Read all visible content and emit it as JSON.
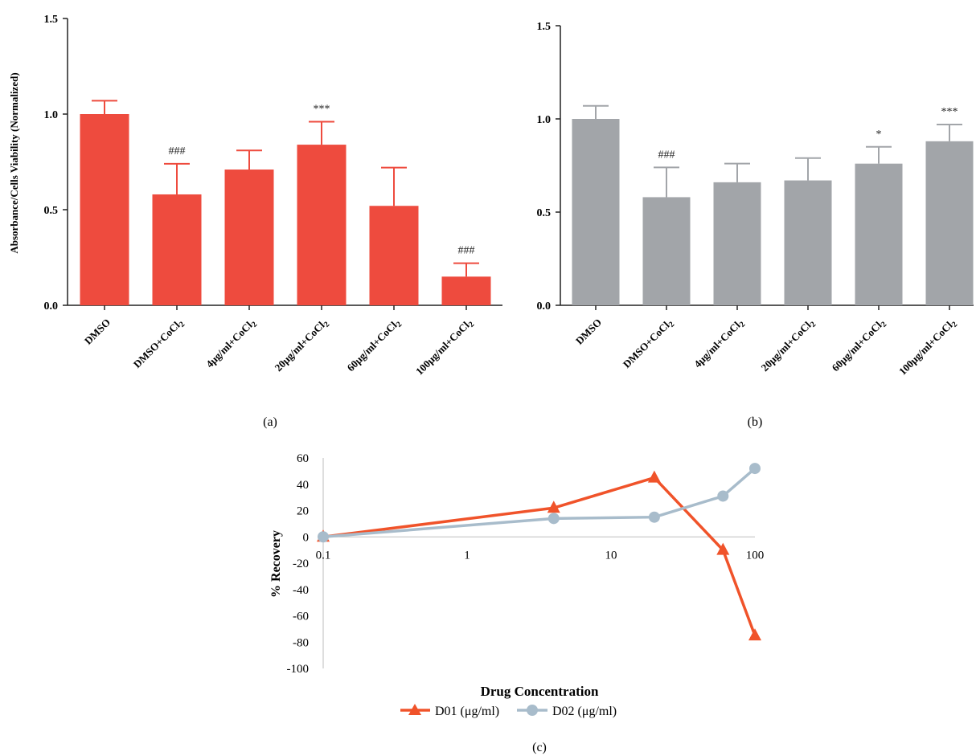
{
  "chart_data": [
    {
      "panel": "(a)",
      "type": "bar",
      "ylabel": "Absorbance/Cells Viability (Normalized)",
      "categories": [
        "DMSO",
        "DMSO+CoCl₂",
        "4μg/ml+CoCl₂",
        "20μg/ml+CoCl₂",
        "60μg/ml+CoCl₂",
        "100μg/ml+CoCl₂"
      ],
      "values": [
        1.0,
        0.58,
        0.71,
        0.84,
        0.52,
        0.15
      ],
      "errors": [
        0.07,
        0.16,
        0.1,
        0.12,
        0.2,
        0.07
      ],
      "annotations": [
        "",
        "###",
        "",
        "***",
        "",
        "###"
      ],
      "ylim": [
        0,
        1.5
      ],
      "yticks": [
        "0.0",
        "0.5",
        "1.0",
        "1.5"
      ],
      "color": "#ee4b3e"
    },
    {
      "panel": "(b)",
      "type": "bar",
      "ylabel": "",
      "categories": [
        "DMSO",
        "DMSO+CoCl₂",
        "4μg/ml+CoCl₂",
        "20μg/ml+CoCl₂",
        "60μg/ml+CoCl₂",
        "100μg/ml+CoCl₂"
      ],
      "values": [
        1.0,
        0.58,
        0.66,
        0.67,
        0.76,
        0.88
      ],
      "errors": [
        0.07,
        0.16,
        0.1,
        0.12,
        0.09,
        0.09
      ],
      "annotations": [
        "",
        "###",
        "",
        "",
        "*",
        "***"
      ],
      "ylim": [
        0,
        1.5
      ],
      "yticks": [
        "0.0",
        "0.5",
        "1.0",
        "1.5"
      ],
      "color": "#a2a5a9"
    },
    {
      "panel": "(c)",
      "type": "line",
      "xscale": "log",
      "xlabel": "Drug Concentration",
      "ylabel": "% Recovery",
      "xticks": [
        "0.1",
        "1",
        "10",
        "100"
      ],
      "yticks": [
        "60",
        "40",
        "20",
        "0",
        "-20",
        "-40",
        "-60",
        "-80",
        "-100"
      ],
      "ylim": [
        -100,
        60
      ],
      "series": [
        {
          "name": "D01 (μg/ml)",
          "marker": "triangle",
          "color": "#f0532a",
          "x": [
            0.1,
            4,
            20,
            60,
            100
          ],
          "values": [
            0,
            22,
            45,
            -10,
            -75
          ]
        },
        {
          "name": "D02 (μg/ml)",
          "marker": "circle",
          "color": "#a8bccb",
          "x": [
            0.1,
            4,
            20,
            60,
            100
          ],
          "values": [
            0,
            14,
            15,
            31,
            52
          ]
        }
      ],
      "legend": "bottom-center"
    }
  ]
}
